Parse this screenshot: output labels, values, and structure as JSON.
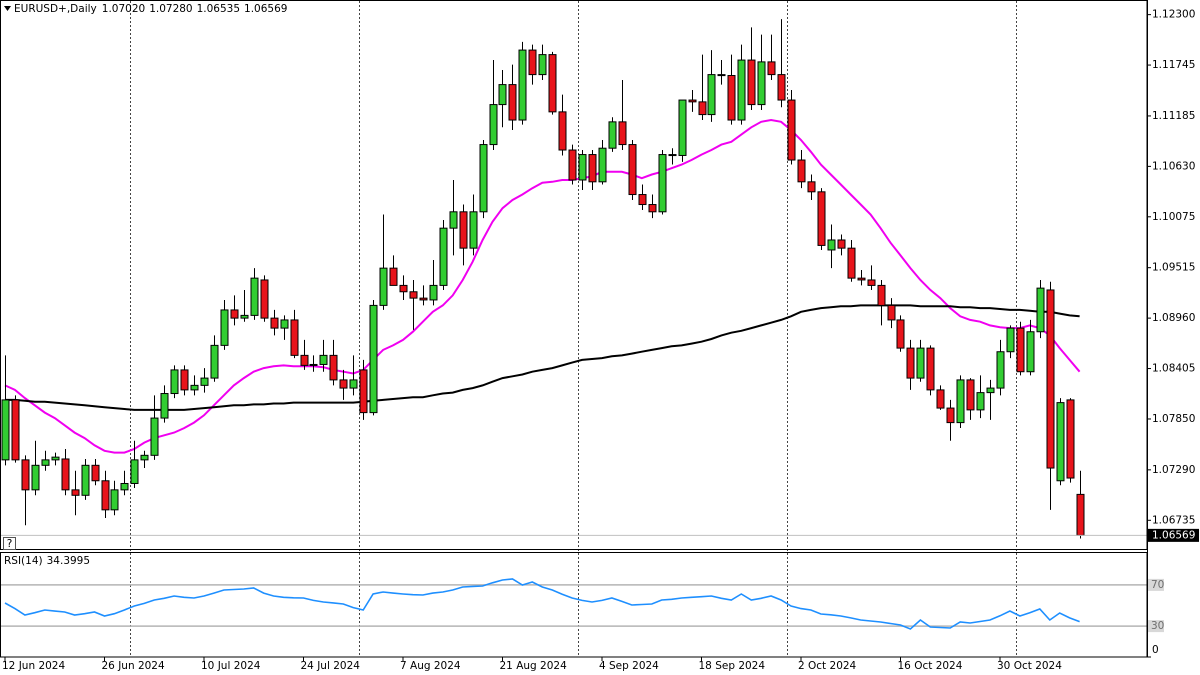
{
  "chart_data": [
    {
      "type": "candlestick",
      "title": "EURUSD+,Daily",
      "ohlc_labels": [
        "1.07020",
        "1.07280",
        "1.06535",
        "1.06569"
      ],
      "help": "?",
      "up_color": "#32cd32",
      "down_color": "#e8141b",
      "x": [
        "2024-06-12",
        "2024-06-13",
        "2024-06-14",
        "2024-06-17",
        "2024-06-18",
        "2024-06-19",
        "2024-06-20",
        "2024-06-21",
        "2024-06-24",
        "2024-06-25",
        "2024-06-26",
        "2024-06-27",
        "2024-06-28",
        "2024-07-01",
        "2024-07-02",
        "2024-07-03",
        "2024-07-04",
        "2024-07-05",
        "2024-07-08",
        "2024-07-09",
        "2024-07-10",
        "2024-07-11",
        "2024-07-12",
        "2024-07-15",
        "2024-07-16",
        "2024-07-17",
        "2024-07-18",
        "2024-07-19",
        "2024-07-22",
        "2024-07-23",
        "2024-07-24",
        "2024-07-25",
        "2024-07-26",
        "2024-07-29",
        "2024-07-30",
        "2024-07-31",
        "2024-08-01",
        "2024-08-02",
        "2024-08-05",
        "2024-08-06",
        "2024-08-07",
        "2024-08-08",
        "2024-08-09",
        "2024-08-12",
        "2024-08-13",
        "2024-08-14",
        "2024-08-15",
        "2024-08-16",
        "2024-08-19",
        "2024-08-20",
        "2024-08-21",
        "2024-08-22",
        "2024-08-23",
        "2024-08-26",
        "2024-08-27",
        "2024-08-28",
        "2024-08-29",
        "2024-08-30",
        "2024-09-02",
        "2024-09-03",
        "2024-09-04",
        "2024-09-05",
        "2024-09-06",
        "2024-09-09",
        "2024-09-10",
        "2024-09-11",
        "2024-09-12",
        "2024-09-13",
        "2024-09-16",
        "2024-09-17",
        "2024-09-18",
        "2024-09-19",
        "2024-09-20",
        "2024-09-23",
        "2024-09-24",
        "2024-09-25",
        "2024-09-26",
        "2024-09-27",
        "2024-09-30",
        "2024-10-01",
        "2024-10-02",
        "2024-10-03",
        "2024-10-04",
        "2024-10-07",
        "2024-10-08",
        "2024-10-09",
        "2024-10-10",
        "2024-10-11",
        "2024-10-14",
        "2024-10-15",
        "2024-10-16",
        "2024-10-17",
        "2024-10-18",
        "2024-10-21",
        "2024-10-22",
        "2024-10-23",
        "2024-10-24",
        "2024-10-25",
        "2024-10-28",
        "2024-10-29",
        "2024-10-30",
        "2024-10-31",
        "2024-11-01",
        "2024-11-04",
        "2024-11-05",
        "2024-11-06",
        "2024-11-07",
        "2024-11-08",
        "2024-11-11"
      ],
      "open": [
        1.074,
        1.0806,
        1.074,
        1.0707,
        1.0734,
        1.074,
        1.0741,
        1.0707,
        1.0701,
        1.0734,
        1.0717,
        1.0685,
        1.0707,
        1.0714,
        1.074,
        1.0745,
        1.0786,
        1.0813,
        1.0839,
        1.0817,
        1.0822,
        1.083,
        1.0866,
        1.0905,
        1.0896,
        1.0899,
        1.0938,
        1.0896,
        1.0885,
        1.0894,
        1.0855,
        1.0844,
        1.0845,
        1.0855,
        1.0828,
        1.0819,
        1.0839,
        1.0792,
        1.091,
        1.0951,
        1.0932,
        1.0925,
        1.0918,
        1.0916,
        1.0932,
        1.0995,
        1.1013,
        1.0973,
        1.1013,
        1.1087,
        1.1131,
        1.1153,
        1.1114,
        1.1191,
        1.1164,
        1.1186,
        1.1123,
        1.1081,
        1.1048,
        1.1076,
        1.1046,
        1.1083,
        1.1112,
        1.1087,
        1.1032,
        1.1021,
        1.1013,
        1.1076,
        1.1075,
        1.1136,
        1.1134,
        1.112,
        1.1164,
        1.1163,
        1.1114,
        1.118,
        1.1131,
        1.1178,
        1.1164,
        1.1136,
        1.107,
        1.1046,
        1.1035,
        1.0971,
        1.0982,
        1.0973,
        1.094,
        1.0938,
        1.0932,
        1.091,
        1.0894,
        1.0863,
        1.083,
        1.0863,
        1.0817,
        1.0797,
        1.0781,
        1.0828,
        1.0795,
        1.0814,
        1.0819,
        1.0859,
        1.0885,
        1.0837,
        1.0881,
        1.0927,
        1.0717,
        1.0806,
        1.0702
      ],
      "high": [
        1.0855,
        1.0811,
        1.0745,
        1.0761,
        1.075,
        1.0748,
        1.0752,
        1.0728,
        1.0741,
        1.0741,
        1.0728,
        1.0717,
        1.0728,
        1.0761,
        1.075,
        1.0811,
        1.0822,
        1.0844,
        1.0844,
        1.0833,
        1.0841,
        1.0877,
        1.0916,
        1.0921,
        1.0927,
        1.0951,
        1.0943,
        1.0905,
        1.0899,
        1.0905,
        1.0872,
        1.0855,
        1.0872,
        1.0872,
        1.0839,
        1.0855,
        1.085,
        1.0916,
        1.101,
        1.0965,
        1.0943,
        1.0938,
        1.0932,
        1.096,
        1.1004,
        1.1048,
        1.1021,
        1.1032,
        1.1092,
        1.118,
        1.1169,
        1.1175,
        1.12,
        1.1197,
        1.1197,
        1.1189,
        1.1142,
        1.1087,
        1.1081,
        1.1081,
        1.1092,
        1.1117,
        1.1158,
        1.1092,
        1.1043,
        1.1032,
        1.1081,
        1.1083,
        1.1136,
        1.1147,
        1.1186,
        1.1191,
        1.118,
        1.1186,
        1.1197,
        1.1216,
        1.1208,
        1.1208,
        1.1225,
        1.1147,
        1.1081,
        1.1054,
        1.1039,
        1.0999,
        1.0988,
        1.0982,
        1.0949,
        1.0954,
        1.0938,
        1.0918,
        1.0899,
        1.0872,
        1.0872,
        1.0866,
        1.0822,
        1.0806,
        1.0833,
        1.083,
        1.0833,
        1.0828,
        1.0872,
        1.0888,
        1.0892,
        1.0894,
        1.0938,
        1.0936,
        1.0808,
        1.0808,
        1.0728
      ],
      "low": [
        1.0734,
        1.0737,
        1.0668,
        1.0701,
        1.0728,
        1.0734,
        1.0701,
        1.0679,
        1.0696,
        1.0712,
        1.0676,
        1.0679,
        1.0701,
        1.0709,
        1.0731,
        1.074,
        1.0781,
        1.0808,
        1.0811,
        1.0811,
        1.0814,
        1.0826,
        1.0861,
        1.0888,
        1.0892,
        1.0894,
        1.0892,
        1.0877,
        1.0872,
        1.0852,
        1.0839,
        1.0837,
        1.0837,
        1.0822,
        1.0806,
        1.0811,
        1.0784,
        1.0789,
        1.0905,
        1.0932,
        1.0916,
        1.0883,
        1.091,
        1.091,
        1.0927,
        1.0965,
        1.0954,
        1.0965,
        1.1006,
        1.1081,
        1.1106,
        1.1103,
        1.1109,
        1.1153,
        1.1158,
        1.112,
        1.1075,
        1.1043,
        1.1037,
        1.1037,
        1.1043,
        1.1079,
        1.1081,
        1.1026,
        1.1015,
        1.1006,
        1.101,
        1.1065,
        1.1068,
        1.1123,
        1.1114,
        1.1112,
        1.1153,
        1.1109,
        1.1109,
        1.1125,
        1.1125,
        1.1158,
        1.1128,
        1.1065,
        1.1039,
        1.1026,
        1.0971,
        1.0951,
        1.0965,
        1.0936,
        1.0932,
        1.0927,
        1.0888,
        1.0885,
        1.0859,
        1.0817,
        1.0826,
        1.0811,
        1.0795,
        1.0761,
        1.0775,
        1.0784,
        1.0786,
        1.0784,
        1.0811,
        1.0852,
        1.0833,
        1.0833,
        1.0874,
        1.0685,
        1.0712,
        1.0715,
        1.06535
      ],
      "close": [
        1.0806,
        1.074,
        1.0707,
        1.0734,
        1.074,
        1.0743,
        1.0707,
        1.0701,
        1.0734,
        1.0717,
        1.0685,
        1.0707,
        1.0714,
        1.074,
        1.0745,
        1.0786,
        1.0813,
        1.0839,
        1.0817,
        1.0822,
        1.083,
        1.0866,
        1.0905,
        1.0896,
        1.0899,
        1.094,
        1.0896,
        1.0885,
        1.0894,
        1.0855,
        1.0844,
        1.0845,
        1.0855,
        1.0828,
        1.0819,
        1.0828,
        1.0792,
        1.091,
        1.0951,
        1.0932,
        1.0925,
        1.0918,
        1.0916,
        1.0932,
        1.0995,
        1.1013,
        1.0973,
        1.1013,
        1.1087,
        1.1131,
        1.1153,
        1.1114,
        1.1191,
        1.1164,
        1.1186,
        1.1123,
        1.1081,
        1.1048,
        1.1076,
        1.1046,
        1.1083,
        1.1112,
        1.1087,
        1.1032,
        1.1021,
        1.1013,
        1.1076,
        1.1075,
        1.1136,
        1.1134,
        1.112,
        1.1164,
        1.1163,
        1.1114,
        1.118,
        1.1131,
        1.1178,
        1.1164,
        1.1136,
        1.107,
        1.1046,
        1.1035,
        1.0976,
        1.0982,
        1.0973,
        1.094,
        1.0938,
        1.0932,
        1.091,
        1.0894,
        1.0863,
        1.083,
        1.0863,
        1.0817,
        1.0797,
        1.0781,
        1.0828,
        1.0795,
        1.0814,
        1.0819,
        1.0859,
        1.0885,
        1.0837,
        1.0881,
        1.0929,
        1.0731,
        1.0803,
        1.072,
        1.06569
      ],
      "lines": [
        {
          "color": "#f000f0",
          "values": [
            1.0822,
            1.0817,
            1.0808,
            1.08,
            1.0792,
            1.0786,
            1.0778,
            1.077,
            1.0764,
            1.0756,
            1.075,
            1.0748,
            1.0748,
            1.0752,
            1.0759,
            1.0764,
            1.0767,
            1.077,
            1.0775,
            1.0781,
            1.0789,
            1.08,
            1.0811,
            1.0822,
            1.083,
            1.0837,
            1.0841,
            1.0843,
            1.0844,
            1.0843,
            1.0843,
            1.0843,
            1.0842,
            1.0839,
            1.0837,
            1.0835,
            1.0839,
            1.085,
            1.0861,
            1.0866,
            1.0872,
            1.0881,
            1.0892,
            1.0903,
            1.091,
            1.0921,
            1.0938,
            1.0958,
            1.0982,
            1.1002,
            1.1017,
            1.1026,
            1.1032,
            1.1039,
            1.1045,
            1.1046,
            1.1048,
            1.1048,
            1.105,
            1.1052,
            1.1057,
            1.1057,
            1.1057,
            1.1054,
            1.105,
            1.1054,
            1.1057,
            1.1061,
            1.1065,
            1.107,
            1.1076,
            1.1081,
            1.1087,
            1.109,
            1.1098,
            1.1106,
            1.1112,
            1.1114,
            1.1112,
            1.1103,
            1.1092,
            1.1079,
            1.1065,
            1.1054,
            1.1043,
            1.1032,
            1.1021,
            1.101,
            1.0995,
            1.0979,
            1.0965,
            1.0951,
            1.0938,
            1.0927,
            1.0918,
            1.0907,
            1.0898,
            1.0894,
            1.0892,
            1.0888,
            1.0886,
            1.0885,
            1.0885,
            1.0888,
            1.0885,
            1.0877,
            1.0863,
            1.085,
            1.0837
          ]
        },
        {
          "color": "#000000",
          "values": [
            1.0806,
            1.0806,
            1.0805,
            1.0804,
            1.0804,
            1.0803,
            1.0802,
            1.0801,
            1.08,
            1.0799,
            1.0798,
            1.0797,
            1.0796,
            1.0795,
            1.0795,
            1.0795,
            1.0795,
            1.0795,
            1.0795,
            1.0796,
            1.0797,
            1.0798,
            1.0799,
            1.08,
            1.08,
            1.0801,
            1.0801,
            1.0802,
            1.0802,
            1.0803,
            1.0803,
            1.0803,
            1.0803,
            1.0803,
            1.0803,
            1.0803,
            1.0804,
            1.0805,
            1.0806,
            1.0807,
            1.0808,
            1.0809,
            1.0809,
            1.0811,
            1.0813,
            1.0814,
            1.0817,
            1.0819,
            1.0822,
            1.0826,
            1.083,
            1.0832,
            1.0834,
            1.0837,
            1.0839,
            1.0841,
            1.0844,
            1.0847,
            1.085,
            1.0851,
            1.0852,
            1.0854,
            1.0855,
            1.0857,
            1.0859,
            1.0861,
            1.0863,
            1.0865,
            1.0866,
            1.0868,
            1.087,
            1.0873,
            1.0877,
            1.088,
            1.0882,
            1.0885,
            1.0888,
            1.0891,
            1.0894,
            1.0898,
            1.0903,
            1.0905,
            1.0907,
            1.0908,
            1.0909,
            1.0909,
            1.091,
            1.091,
            1.091,
            1.091,
            1.091,
            1.091,
            1.0909,
            1.0909,
            1.0909,
            1.0909,
            1.0908,
            1.0908,
            1.0907,
            1.0907,
            1.0906,
            1.0905,
            1.0905,
            1.0904,
            1.0903,
            1.0903,
            1.0901,
            1.0899,
            1.0898
          ]
        }
      ],
      "ylim": [
        1.0643,
        1.1245
      ],
      "yticks": [
        {
          "value": 1.123,
          "label": "1.12300"
        },
        {
          "value": 1.11745,
          "label": "1.11745"
        },
        {
          "value": 1.11185,
          "label": "1.11185"
        },
        {
          "value": 1.1063,
          "label": "1.10630"
        },
        {
          "value": 1.10075,
          "label": "1.10075"
        },
        {
          "value": 1.09515,
          "label": "1.09515"
        },
        {
          "value": 1.0896,
          "label": "1.08960"
        },
        {
          "value": 1.08405,
          "label": "1.08405"
        },
        {
          "value": 1.0785,
          "label": "1.07850"
        },
        {
          "value": 1.0729,
          "label": "1.07290"
        },
        {
          "value": 1.06735,
          "label": "1.06735"
        }
      ],
      "xticks": [
        {
          "value": "2024-06-12",
          "label": "12 Jun 2024"
        },
        {
          "value": "2024-06-26",
          "label": "26 Jun 2024"
        },
        {
          "value": "2024-07-10",
          "label": "10 Jul 2024"
        },
        {
          "value": "2024-07-24",
          "label": "24 Jul 2024"
        },
        {
          "value": "2024-08-07",
          "label": "7 Aug 2024"
        },
        {
          "value": "2024-08-21",
          "label": "21 Aug 2024"
        },
        {
          "value": "2024-09-04",
          "label": "4 Sep 2024"
        },
        {
          "value": "2024-09-18",
          "label": "18 Sep 2024"
        },
        {
          "value": "2024-10-02",
          "label": "2 Oct 2024"
        },
        {
          "value": "2024-10-16",
          "label": "16 Oct 2024"
        },
        {
          "value": "2024-10-30",
          "label": "30 Oct 2024"
        }
      ]
    },
    {
      "type": "line",
      "title": "RSI(14)",
      "series": [
        {
          "color": "#1e8fff",
          "values": [
            52.4,
            47,
            40.8,
            43,
            45.6,
            44.6,
            43.7,
            40.8,
            42,
            43.7,
            39.8,
            42,
            45.6,
            49.5,
            52,
            55.3,
            57,
            59.2,
            58,
            57.3,
            59.2,
            62,
            65,
            65.5,
            66,
            67,
            62,
            59.2,
            58,
            57.5,
            57.3,
            55,
            53.4,
            52.5,
            51.5,
            48,
            45.6,
            61.2,
            63.1,
            62,
            61.2,
            60.5,
            60.2,
            62,
            63.1,
            65,
            68,
            68.5,
            68.9,
            72,
            74.8,
            75.7,
            69.9,
            72.8,
            68,
            65,
            61,
            57.3,
            55,
            53.4,
            55,
            57.3,
            54,
            50.5,
            51,
            51.5,
            55.3,
            56,
            57.3,
            58,
            58.5,
            59.2,
            57,
            55.3,
            61.2,
            55.3,
            57,
            59.2,
            55.3,
            49.5,
            47,
            45.6,
            41.7,
            41,
            39.8,
            38,
            35.9,
            35,
            34,
            32.5,
            31.1,
            27.2,
            35.9,
            29.1,
            28.6,
            28.2,
            34,
            33,
            34.5,
            35.9,
            40,
            44.7,
            39.8,
            43,
            46.6,
            35.9,
            42.7,
            38,
            34.3995
          ]
        }
      ],
      "ylim": [
        0,
        100
      ],
      "yticks": [
        0,
        30,
        70
      ]
    }
  ]
}
